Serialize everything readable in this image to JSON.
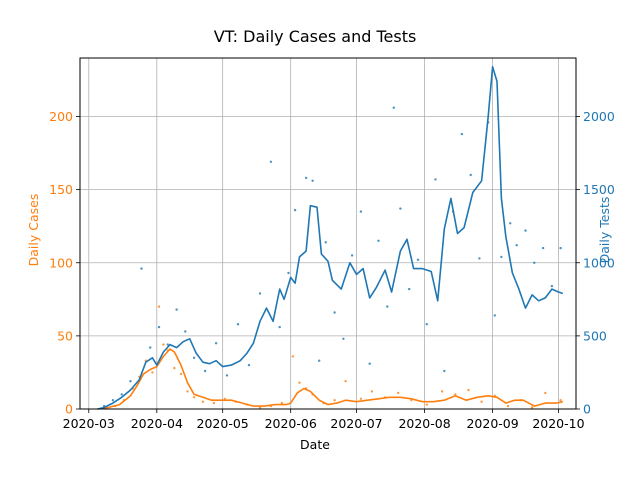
{
  "chart_data": {
    "type": "line",
    "title": "VT: Daily Cases and Tests",
    "xlabel": "Date",
    "ylabel_left": "Daily Cases",
    "ylabel_right": "Daily Tests",
    "x_ticks": [
      "2020-03",
      "2020-04",
      "2020-05",
      "2020-06",
      "2020-07",
      "2020-08",
      "2020-09",
      "2020-10"
    ],
    "x_range": [
      "2020-02-26",
      "2020-10-09"
    ],
    "ylim_left": [
      0,
      240
    ],
    "ylim_right": [
      0,
      2400
    ],
    "y_ticks_left": [
      0,
      50,
      100,
      150,
      200
    ],
    "y_ticks_right": [
      0,
      500,
      1000,
      1500,
      2000
    ],
    "grid": true,
    "colors": {
      "cases": "#ff7f0e",
      "tests": "#1f77b4"
    },
    "series": [
      {
        "axis": "left",
        "style": "line",
        "values": [
          [
            "2020-03-05",
            0
          ],
          [
            "2020-03-10",
            1
          ],
          [
            "2020-03-15",
            3
          ],
          [
            "2020-03-20",
            9
          ],
          [
            "2020-03-23",
            16
          ],
          [
            "2020-03-26",
            24
          ],
          [
            "2020-03-29",
            27
          ],
          [
            "2020-04-01",
            29
          ],
          [
            "2020-04-04",
            36
          ],
          [
            "2020-04-07",
            41
          ],
          [
            "2020-04-09",
            39
          ],
          [
            "2020-04-12",
            30
          ],
          [
            "2020-04-15",
            18
          ],
          [
            "2020-04-18",
            10
          ],
          [
            "2020-04-22",
            8
          ],
          [
            "2020-04-26",
            6
          ],
          [
            "2020-05-01",
            6
          ],
          [
            "2020-05-05",
            6
          ],
          [
            "2020-05-10",
            4
          ],
          [
            "2020-05-15",
            2
          ],
          [
            "2020-05-20",
            2
          ],
          [
            "2020-05-25",
            3
          ],
          [
            "2020-05-30",
            3
          ],
          [
            "2020-06-01",
            4
          ],
          [
            "2020-06-04",
            11
          ],
          [
            "2020-06-07",
            14
          ],
          [
            "2020-06-10",
            12
          ],
          [
            "2020-06-14",
            6
          ],
          [
            "2020-06-18",
            3
          ],
          [
            "2020-06-22",
            4
          ],
          [
            "2020-06-26",
            6
          ],
          [
            "2020-07-01",
            5
          ],
          [
            "2020-07-06",
            6
          ],
          [
            "2020-07-11",
            7
          ],
          [
            "2020-07-16",
            8
          ],
          [
            "2020-07-21",
            8
          ],
          [
            "2020-07-26",
            7
          ],
          [
            "2020-07-31",
            5
          ],
          [
            "2020-08-05",
            5
          ],
          [
            "2020-08-10",
            6
          ],
          [
            "2020-08-15",
            9
          ],
          [
            "2020-08-20",
            6
          ],
          [
            "2020-08-25",
            8
          ],
          [
            "2020-08-30",
            9
          ],
          [
            "2020-09-03",
            8
          ],
          [
            "2020-09-07",
            4
          ],
          [
            "2020-09-11",
            6
          ],
          [
            "2020-09-15",
            6
          ],
          [
            "2020-09-20",
            2
          ],
          [
            "2020-09-25",
            4
          ],
          [
            "2020-09-30",
            4
          ],
          [
            "2020-10-03",
            5
          ]
        ]
      },
      {
        "axis": "left",
        "style": "scatter",
        "values": [
          [
            "2020-03-08",
            1
          ],
          [
            "2020-03-13",
            2
          ],
          [
            "2020-03-17",
            6
          ],
          [
            "2020-03-21",
            14
          ],
          [
            "2020-03-24",
            22
          ],
          [
            "2020-03-27",
            33
          ],
          [
            "2020-03-30",
            25
          ],
          [
            "2020-04-02",
            70
          ],
          [
            "2020-04-04",
            44
          ],
          [
            "2020-04-06",
            40
          ],
          [
            "2020-04-09",
            28
          ],
          [
            "2020-04-12",
            24
          ],
          [
            "2020-04-15",
            12
          ],
          [
            "2020-04-18",
            8
          ],
          [
            "2020-04-22",
            5
          ],
          [
            "2020-04-27",
            4
          ],
          [
            "2020-05-02",
            7
          ],
          [
            "2020-05-07",
            5
          ],
          [
            "2020-05-12",
            3
          ],
          [
            "2020-05-18",
            1
          ],
          [
            "2020-05-23",
            2
          ],
          [
            "2020-05-28",
            4
          ],
          [
            "2020-06-02",
            36
          ],
          [
            "2020-06-05",
            18
          ],
          [
            "2020-06-08",
            14
          ],
          [
            "2020-06-11",
            10
          ],
          [
            "2020-06-16",
            4
          ],
          [
            "2020-06-21",
            6
          ],
          [
            "2020-06-26",
            19
          ],
          [
            "2020-07-03",
            7
          ],
          [
            "2020-07-08",
            12
          ],
          [
            "2020-07-14",
            8
          ],
          [
            "2020-07-20",
            11
          ],
          [
            "2020-07-26",
            6
          ],
          [
            "2020-08-02",
            3
          ],
          [
            "2020-08-09",
            12
          ],
          [
            "2020-08-15",
            10
          ],
          [
            "2020-08-21",
            13
          ],
          [
            "2020-08-27",
            5
          ],
          [
            "2020-09-02",
            9
          ],
          [
            "2020-09-08",
            2
          ],
          [
            "2020-09-14",
            6
          ],
          [
            "2020-09-19",
            1
          ],
          [
            "2020-09-25",
            11
          ],
          [
            "2020-10-02",
            6
          ]
        ]
      },
      {
        "axis": "right",
        "style": "line",
        "values": [
          [
            "2020-03-05",
            0
          ],
          [
            "2020-03-08",
            10
          ],
          [
            "2020-03-12",
            40
          ],
          [
            "2020-03-16",
            80
          ],
          [
            "2020-03-20",
            130
          ],
          [
            "2020-03-24",
            200
          ],
          [
            "2020-03-27",
            320
          ],
          [
            "2020-03-30",
            350
          ],
          [
            "2020-04-01",
            300
          ],
          [
            "2020-04-04",
            390
          ],
          [
            "2020-04-07",
            440
          ],
          [
            "2020-04-10",
            420
          ],
          [
            "2020-04-13",
            460
          ],
          [
            "2020-04-16",
            480
          ],
          [
            "2020-04-19",
            380
          ],
          [
            "2020-04-22",
            320
          ],
          [
            "2020-04-25",
            310
          ],
          [
            "2020-04-28",
            330
          ],
          [
            "2020-05-01",
            290
          ],
          [
            "2020-05-05",
            300
          ],
          [
            "2020-05-09",
            330
          ],
          [
            "2020-05-12",
            380
          ],
          [
            "2020-05-15",
            450
          ],
          [
            "2020-05-18",
            600
          ],
          [
            "2020-05-21",
            690
          ],
          [
            "2020-05-24",
            600
          ],
          [
            "2020-05-27",
            820
          ],
          [
            "2020-05-29",
            750
          ],
          [
            "2020-06-01",
            900
          ],
          [
            "2020-06-03",
            860
          ],
          [
            "2020-06-05",
            1040
          ],
          [
            "2020-06-08",
            1080
          ],
          [
            "2020-06-10",
            1390
          ],
          [
            "2020-06-13",
            1380
          ],
          [
            "2020-06-15",
            1060
          ],
          [
            "2020-06-18",
            1010
          ],
          [
            "2020-06-20",
            880
          ],
          [
            "2020-06-24",
            820
          ],
          [
            "2020-06-28",
            1000
          ],
          [
            "2020-07-01",
            920
          ],
          [
            "2020-07-04",
            960
          ],
          [
            "2020-07-07",
            760
          ],
          [
            "2020-07-10",
            830
          ],
          [
            "2020-07-14",
            950
          ],
          [
            "2020-07-17",
            800
          ],
          [
            "2020-07-21",
            1080
          ],
          [
            "2020-07-24",
            1160
          ],
          [
            "2020-07-27",
            960
          ],
          [
            "2020-07-31",
            960
          ],
          [
            "2020-08-04",
            940
          ],
          [
            "2020-08-07",
            740
          ],
          [
            "2020-08-10",
            1230
          ],
          [
            "2020-08-13",
            1440
          ],
          [
            "2020-08-16",
            1200
          ],
          [
            "2020-08-19",
            1240
          ],
          [
            "2020-08-23",
            1480
          ],
          [
            "2020-08-27",
            1560
          ],
          [
            "2020-08-30",
            2000
          ],
          [
            "2020-09-01",
            2340
          ],
          [
            "2020-09-03",
            2240
          ],
          [
            "2020-09-05",
            1440
          ],
          [
            "2020-09-07",
            1180
          ],
          [
            "2020-09-10",
            930
          ],
          [
            "2020-09-13",
            820
          ],
          [
            "2020-09-16",
            690
          ],
          [
            "2020-09-19",
            780
          ],
          [
            "2020-09-22",
            740
          ],
          [
            "2020-09-25",
            760
          ],
          [
            "2020-09-28",
            820
          ],
          [
            "2020-10-01",
            800
          ],
          [
            "2020-10-03",
            790
          ]
        ]
      },
      {
        "axis": "right",
        "style": "scatter",
        "values": [
          [
            "2020-03-08",
            20
          ],
          [
            "2020-03-12",
            60
          ],
          [
            "2020-03-16",
            100
          ],
          [
            "2020-03-20",
            190
          ],
          [
            "2020-03-25",
            960
          ],
          [
            "2020-03-29",
            420
          ],
          [
            "2020-04-02",
            560
          ],
          [
            "2020-04-06",
            440
          ],
          [
            "2020-04-10",
            680
          ],
          [
            "2020-04-14",
            530
          ],
          [
            "2020-04-18",
            350
          ],
          [
            "2020-04-23",
            260
          ],
          [
            "2020-04-28",
            450
          ],
          [
            "2020-05-03",
            230
          ],
          [
            "2020-05-08",
            580
          ],
          [
            "2020-05-13",
            300
          ],
          [
            "2020-05-18",
            790
          ],
          [
            "2020-05-23",
            1690
          ],
          [
            "2020-05-27",
            560
          ],
          [
            "2020-05-31",
            930
          ],
          [
            "2020-06-03",
            1360
          ],
          [
            "2020-06-08",
            1580
          ],
          [
            "2020-06-11",
            1560
          ],
          [
            "2020-06-14",
            330
          ],
          [
            "2020-06-17",
            1140
          ],
          [
            "2020-06-21",
            660
          ],
          [
            "2020-06-25",
            480
          ],
          [
            "2020-06-29",
            1050
          ],
          [
            "2020-07-03",
            1350
          ],
          [
            "2020-07-07",
            310
          ],
          [
            "2020-07-11",
            1150
          ],
          [
            "2020-07-15",
            700
          ],
          [
            "2020-07-18",
            2060
          ],
          [
            "2020-07-21",
            1370
          ],
          [
            "2020-07-25",
            820
          ],
          [
            "2020-07-29",
            1020
          ],
          [
            "2020-08-02",
            580
          ],
          [
            "2020-08-06",
            1570
          ],
          [
            "2020-08-10",
            260
          ],
          [
            "2020-08-14",
            1350
          ],
          [
            "2020-08-18",
            1880
          ],
          [
            "2020-08-22",
            1600
          ],
          [
            "2020-08-26",
            1030
          ],
          [
            "2020-08-30",
            1960
          ],
          [
            "2020-09-02",
            640
          ],
          [
            "2020-09-05",
            1040
          ],
          [
            "2020-09-09",
            1270
          ],
          [
            "2020-09-12",
            1120
          ],
          [
            "2020-09-16",
            1220
          ],
          [
            "2020-09-20",
            1000
          ],
          [
            "2020-09-24",
            1100
          ],
          [
            "2020-09-28",
            840
          ],
          [
            "2020-10-02",
            1100
          ]
        ]
      }
    ]
  }
}
